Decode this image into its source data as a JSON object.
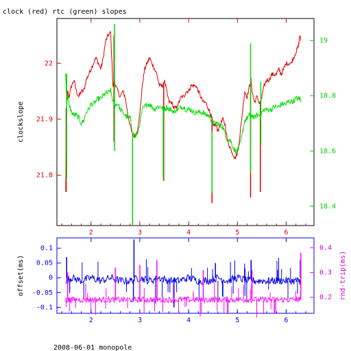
{
  "title": "clock (red) rtc (green) slopes",
  "footer": "2008-06-01 monopole",
  "colors": {
    "clock": "#dd0000",
    "rtc": "#00dd00",
    "offset": "#0000ee",
    "rndtrip": "#ff00ff",
    "axis": "#000000"
  },
  "chart_data": [
    {
      "type": "line",
      "ylabel": "clockslope",
      "y2label": "",
      "xlim": [
        1.3,
        6.57
      ],
      "ylim": [
        21.71,
        22.08
      ],
      "y2lim": [
        18.33,
        19.08
      ],
      "x_ticks": [
        2,
        3,
        4,
        5,
        6
      ],
      "y_ticks": [
        21.8,
        21.9,
        22
      ],
      "y_tick_labels": [
        "21.8",
        "21.9",
        "22"
      ],
      "y2_ticks": [
        18.4,
        18.6,
        18.8,
        19
      ],
      "y2_tick_labels": [
        "18.4",
        "18.6",
        "18.8",
        "19"
      ],
      "series": [
        {
          "name": "clock",
          "axis": "left",
          "x": [
            1.48,
            1.5,
            1.52,
            1.55,
            1.6,
            1.65,
            1.7,
            1.75,
            1.8,
            1.85,
            1.9,
            1.95,
            2.0,
            2.05,
            2.1,
            2.15,
            2.2,
            2.25,
            2.3,
            2.35,
            2.4,
            2.45,
            2.48,
            2.5,
            2.55,
            2.6,
            2.65,
            2.7,
            2.75,
            2.8,
            2.85,
            2.9,
            2.95,
            3.0,
            3.05,
            3.1,
            3.15,
            3.2,
            3.25,
            3.3,
            3.35,
            3.4,
            3.45,
            3.48,
            3.5,
            3.55,
            3.6,
            3.65,
            3.7,
            3.75,
            3.8,
            3.85,
            3.9,
            3.95,
            4.0,
            4.05,
            4.1,
            4.15,
            4.2,
            4.25,
            4.3,
            4.35,
            4.4,
            4.45,
            4.48,
            4.5,
            4.55,
            4.6,
            4.65,
            4.7,
            4.75,
            4.8,
            4.85,
            4.9,
            4.95,
            5.0,
            5.05,
            5.1,
            5.15,
            5.2,
            5.25,
            5.28,
            5.3,
            5.35,
            5.4,
            5.45,
            5.48,
            5.5,
            5.55,
            5.6,
            5.65,
            5.7,
            5.75,
            5.8,
            5.85,
            5.9,
            5.95,
            6.0,
            6.05,
            6.1,
            6.15,
            6.2,
            6.25,
            6.28,
            6.3
          ],
          "y": [
            21.77,
            21.92,
            21.95,
            21.94,
            21.96,
            21.97,
            21.95,
            21.94,
            21.95,
            21.95,
            21.97,
            21.98,
            21.99,
            22.0,
            22.01,
            22.0,
            21.99,
            22.01,
            22.04,
            22.05,
            22.055,
            21.96,
            21.97,
            21.96,
            21.95,
            21.94,
            21.95,
            21.94,
            21.91,
            21.89,
            21.87,
            21.87,
            21.88,
            21.91,
            21.96,
            21.99,
            22.0,
            22.01,
            22.0,
            21.99,
            21.98,
            21.96,
            21.96,
            21.96,
            21.97,
            21.95,
            21.93,
            21.93,
            21.92,
            21.92,
            21.93,
            21.94,
            21.94,
            21.95,
            21.95,
            21.96,
            21.96,
            21.96,
            21.95,
            21.94,
            21.93,
            21.93,
            21.92,
            21.91,
            21.9,
            21.89,
            21.89,
            21.88,
            21.89,
            21.9,
            21.89,
            21.86,
            21.85,
            21.84,
            21.83,
            21.84,
            21.87,
            21.91,
            21.95,
            21.94,
            21.96,
            21.97,
            21.95,
            21.93,
            21.94,
            21.93,
            21.93,
            21.94,
            21.96,
            21.97,
            21.97,
            21.98,
            21.98,
            21.98,
            21.99,
            21.98,
            21.99,
            22.0,
            22.0,
            22.0,
            22.01,
            22.02,
            22.03,
            22.05,
            22.04
          ],
          "spikes": [
            {
              "x": 1.49,
              "from": 21.92,
              "to": 21.77
            },
            {
              "x": 2.47,
              "from": 22.05,
              "to": 21.86
            },
            {
              "x": 3.49,
              "from": 21.96,
              "to": 21.79
            },
            {
              "x": 4.48,
              "from": 21.9,
              "to": 21.75
            },
            {
              "x": 5.27,
              "from": 21.95,
              "to": 21.76
            },
            {
              "x": 5.47,
              "from": 21.93,
              "to": 21.77
            }
          ]
        },
        {
          "name": "rtc",
          "axis": "right",
          "x": [
            1.48,
            1.5,
            1.52,
            1.55,
            1.6,
            1.65,
            1.7,
            1.75,
            1.8,
            1.85,
            1.9,
            1.95,
            2.0,
            2.05,
            2.1,
            2.15,
            2.2,
            2.25,
            2.3,
            2.35,
            2.4,
            2.45,
            2.48,
            2.5,
            2.55,
            2.6,
            2.65,
            2.7,
            2.75,
            2.8,
            2.85,
            2.9,
            2.95,
            3.0,
            3.05,
            3.1,
            3.15,
            3.2,
            3.25,
            3.3,
            3.35,
            3.4,
            3.45,
            3.48,
            3.5,
            3.55,
            3.6,
            3.65,
            3.7,
            3.75,
            3.8,
            3.85,
            3.9,
            3.95,
            4.0,
            4.05,
            4.1,
            4.15,
            4.2,
            4.25,
            4.3,
            4.35,
            4.4,
            4.45,
            4.48,
            4.5,
            4.55,
            4.6,
            4.65,
            4.7,
            4.75,
            4.8,
            4.85,
            4.9,
            4.95,
            5.0,
            5.05,
            5.1,
            5.15,
            5.2,
            5.25,
            5.28,
            5.3,
            5.35,
            5.4,
            5.45,
            5.48,
            5.5,
            5.55,
            5.6,
            5.65,
            5.7,
            5.75,
            5.8,
            5.85,
            5.9,
            5.95,
            6.0,
            6.05,
            6.1,
            6.15,
            6.2,
            6.25,
            6.28,
            6.3
          ],
          "y": [
            18.88,
            18.76,
            18.8,
            18.77,
            18.74,
            18.73,
            18.73,
            18.72,
            18.7,
            18.71,
            18.74,
            18.75,
            18.77,
            18.77,
            18.78,
            18.79,
            18.79,
            18.8,
            18.81,
            18.81,
            18.82,
            18.78,
            18.76,
            18.77,
            18.77,
            18.75,
            18.74,
            18.73,
            18.72,
            18.72,
            18.67,
            18.65,
            18.66,
            18.7,
            18.75,
            18.76,
            18.77,
            18.77,
            18.76,
            18.75,
            18.76,
            18.76,
            18.76,
            18.75,
            18.75,
            18.76,
            18.75,
            18.75,
            18.74,
            18.75,
            18.75,
            18.76,
            18.76,
            18.75,
            18.75,
            18.75,
            18.74,
            18.74,
            18.74,
            18.74,
            18.74,
            18.73,
            18.73,
            18.72,
            18.7,
            18.7,
            18.7,
            18.7,
            18.69,
            18.69,
            18.66,
            18.64,
            18.64,
            18.62,
            18.6,
            18.6,
            18.62,
            18.66,
            18.71,
            18.72,
            18.73,
            18.72,
            18.73,
            18.72,
            18.73,
            18.73,
            18.73,
            18.74,
            18.75,
            18.75,
            18.75,
            18.75,
            18.76,
            18.76,
            18.76,
            18.77,
            18.77,
            18.77,
            18.78,
            18.78,
            18.78,
            18.79,
            18.79,
            18.79,
            18.78
          ],
          "spikes": [
            {
              "x": 1.5,
              "from": 18.88,
              "to": 18.5
            },
            {
              "x": 2.48,
              "from": 19.06,
              "to": 18.6
            },
            {
              "x": 2.85,
              "from": 18.65,
              "to": 18.33
            },
            {
              "x": 3.48,
              "from": 18.76,
              "to": 18.5
            },
            {
              "x": 4.48,
              "from": 18.67,
              "to": 18.45
            },
            {
              "x": 5.27,
              "from": 18.99,
              "to": 18.52
            },
            {
              "x": 5.48,
              "from": 18.85,
              "to": 18.62
            }
          ]
        }
      ]
    },
    {
      "type": "line",
      "ylabel": "offset(ms)",
      "y2label": "rnd-trip(ms)",
      "xlim": [
        1.3,
        6.57
      ],
      "ylim": [
        -0.12,
        0.135
      ],
      "y2lim": [
        0.135,
        0.44
      ],
      "x_ticks": [
        2,
        3,
        4,
        5,
        6
      ],
      "y_ticks": [
        -0.1,
        -0.05,
        0,
        0.05,
        0.1
      ],
      "y_tick_labels": [
        "-0.1",
        "-0.05",
        "0",
        "0.05",
        "0.1"
      ],
      "y2_ticks": [
        0.2,
        0.3,
        0.4
      ],
      "y2_tick_labels": [
        "0.2",
        "0.3",
        "0.4"
      ],
      "series": [
        {
          "name": "offset",
          "axis": "left",
          "x": [
            1.48,
            1.6,
            1.8,
            2.0,
            2.2,
            2.4,
            2.6,
            2.8,
            3.0,
            3.2,
            3.4,
            3.6,
            3.8,
            4.0,
            4.2,
            4.4,
            4.6,
            4.8,
            5.0,
            5.2,
            5.4,
            5.6,
            5.8,
            6.0,
            6.2,
            6.3
          ],
          "y": [
            -0.01,
            0.0,
            -0.01,
            0.0,
            -0.01,
            0.0,
            -0.01,
            -0.01,
            0.0,
            -0.01,
            0.0,
            -0.01,
            -0.01,
            0.0,
            -0.01,
            -0.01,
            0.0,
            -0.01,
            0.0,
            -0.01,
            -0.01,
            -0.01,
            -0.01,
            -0.01,
            -0.01,
            -0.01
          ],
          "noise": 0.013,
          "spikes": [
            {
              "x": 1.5,
              "from": 0.0,
              "to": 0.07
            },
            {
              "x": 2.88,
              "from": 0.0,
              "to": 0.13
            },
            {
              "x": 3.7,
              "from": 0.0,
              "to": -0.1
            },
            {
              "x": 4.55,
              "from": 0.0,
              "to": 0.05
            },
            {
              "x": 5.28,
              "from": 0.0,
              "to": 0.06
            },
            {
              "x": 6.29,
              "from": 0.0,
              "to": 0.06
            }
          ]
        },
        {
          "name": "rnd-trip",
          "axis": "right",
          "x": [
            1.48,
            1.6,
            1.8,
            2.0,
            2.2,
            2.4,
            2.6,
            2.8,
            3.0,
            3.2,
            3.4,
            3.6,
            3.8,
            4.0,
            4.2,
            4.4,
            4.6,
            4.8,
            5.0,
            5.2,
            5.4,
            5.6,
            5.8,
            6.0,
            6.2,
            6.3
          ],
          "y": [
            0.19,
            0.19,
            0.19,
            0.19,
            0.19,
            0.19,
            0.19,
            0.19,
            0.19,
            0.19,
            0.19,
            0.19,
            0.19,
            0.19,
            0.19,
            0.19,
            0.19,
            0.19,
            0.19,
            0.19,
            0.19,
            0.19,
            0.19,
            0.19,
            0.19,
            0.19
          ],
          "noise": 0.012,
          "spikes": [
            {
              "x": 1.52,
              "from": 0.19,
              "to": 0.3
            },
            {
              "x": 2.5,
              "from": 0.19,
              "to": 0.32
            },
            {
              "x": 3.0,
              "from": 0.19,
              "to": 0.33
            },
            {
              "x": 3.35,
              "from": 0.19,
              "to": 0.35
            },
            {
              "x": 4.3,
              "from": 0.19,
              "to": 0.31
            },
            {
              "x": 5.3,
              "from": 0.19,
              "to": 0.31
            },
            {
              "x": 6.3,
              "from": 0.19,
              "to": 0.38
            }
          ]
        }
      ]
    }
  ]
}
